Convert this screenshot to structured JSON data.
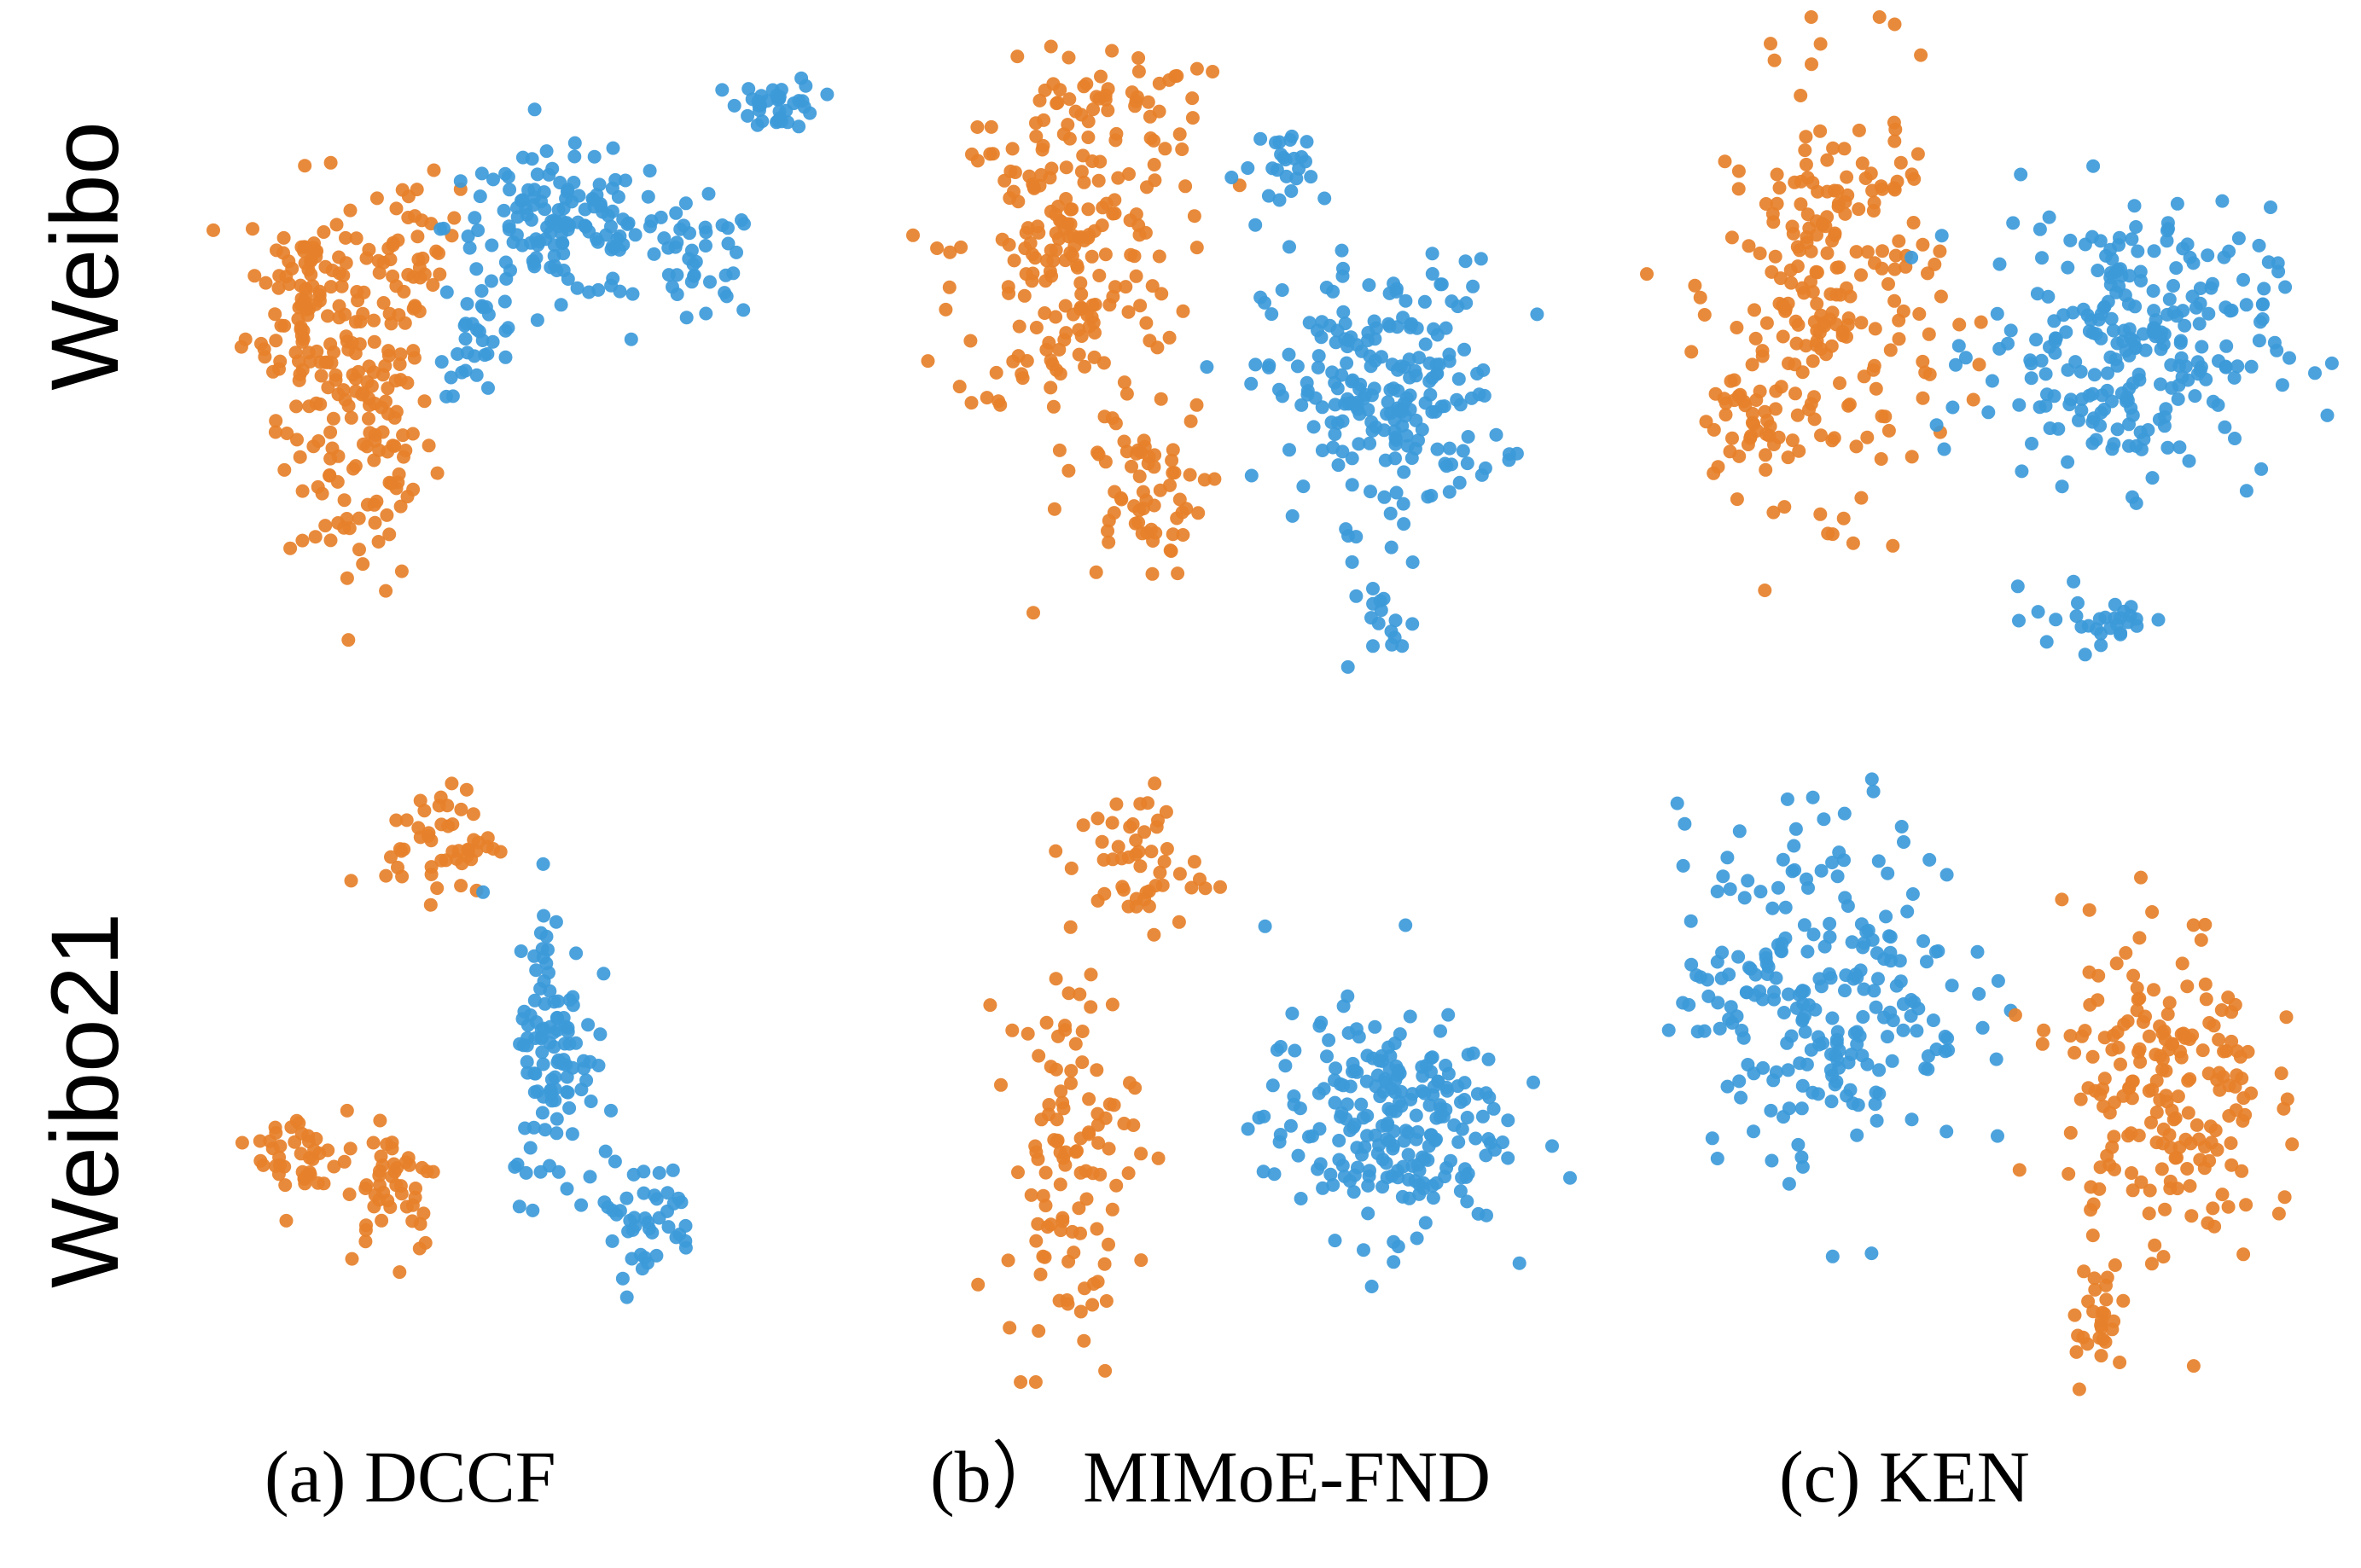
{
  "colors": {
    "orange": "#e6802a",
    "blue": "#3d9ad9"
  },
  "row_labels": [
    "Weibo",
    "Weibo21"
  ],
  "col_labels": [
    "(a) DCCF",
    "(b） MIMoE-FND",
    "(c) KEN"
  ],
  "chart_data": [
    {
      "type": "scatter",
      "row": "Weibo",
      "column": "(a) DCCF",
      "xlim": [
        0,
        100
      ],
      "ylim": [
        0,
        100
      ],
      "clusters": [
        {
          "color": "orange",
          "cx": 22,
          "cy": 42,
          "rx": 11,
          "ry": 25,
          "n": 140
        },
        {
          "color": "orange",
          "cx": 14,
          "cy": 62,
          "rx": 9,
          "ry": 18,
          "n": 90
        },
        {
          "color": "orange",
          "cx": 30,
          "cy": 70,
          "rx": 7,
          "ry": 10,
          "n": 40
        },
        {
          "color": "blue",
          "cx": 52,
          "cy": 73,
          "rx": 17,
          "ry": 11,
          "n": 140
        },
        {
          "color": "blue",
          "cx": 73,
          "cy": 67,
          "rx": 9,
          "ry": 9,
          "n": 40
        },
        {
          "color": "blue",
          "cx": 85,
          "cy": 92,
          "rx": 6,
          "ry": 4,
          "n": 35
        },
        {
          "color": "blue",
          "cx": 40,
          "cy": 55,
          "rx": 6,
          "ry": 8,
          "n": 30
        }
      ]
    },
    {
      "type": "scatter",
      "row": "Weibo",
      "column": "(b） MIMoE-FND",
      "xlim": [
        0,
        100
      ],
      "ylim": [
        0,
        100
      ],
      "clusters": [
        {
          "color": "orange",
          "cx": 22,
          "cy": 65,
          "rx": 16,
          "ry": 26,
          "n": 200
        },
        {
          "color": "orange",
          "cx": 33,
          "cy": 30,
          "rx": 9,
          "ry": 12,
          "n": 60
        },
        {
          "color": "orange",
          "cx": 30,
          "cy": 88,
          "rx": 12,
          "ry": 8,
          "n": 40
        },
        {
          "color": "blue",
          "cx": 68,
          "cy": 45,
          "rx": 17,
          "ry": 19,
          "n": 220
        },
        {
          "color": "blue",
          "cx": 55,
          "cy": 78,
          "rx": 8,
          "ry": 6,
          "n": 25
        },
        {
          "color": "blue",
          "cx": 70,
          "cy": 10,
          "rx": 5,
          "ry": 6,
          "n": 15
        }
      ]
    },
    {
      "type": "scatter",
      "row": "Weibo",
      "column": "(c) KEN",
      "xlim": [
        0,
        100
      ],
      "ylim": [
        0,
        100
      ],
      "clusters": [
        {
          "color": "orange",
          "cx": 26,
          "cy": 60,
          "rx": 15,
          "ry": 30,
          "n": 220
        },
        {
          "color": "orange",
          "cx": 14,
          "cy": 40,
          "rx": 8,
          "ry": 10,
          "n": 40
        },
        {
          "color": "blue",
          "cx": 67,
          "cy": 52,
          "rx": 20,
          "ry": 20,
          "n": 260
        },
        {
          "color": "blue",
          "cx": 64,
          "cy": 12,
          "rx": 10,
          "ry": 5,
          "n": 30
        }
      ]
    },
    {
      "type": "scatter",
      "row": "Weibo21",
      "column": "(a) DCCF",
      "xlim": [
        0,
        100
      ],
      "ylim": [
        0,
        100
      ],
      "clusters": [
        {
          "color": "orange",
          "cx": 38,
          "cy": 85,
          "rx": 9,
          "ry": 9,
          "n": 50
        },
        {
          "color": "orange",
          "cx": 14,
          "cy": 32,
          "rx": 7,
          "ry": 9,
          "n": 40
        },
        {
          "color": "orange",
          "cx": 30,
          "cy": 28,
          "rx": 8,
          "ry": 12,
          "n": 50
        },
        {
          "color": "blue",
          "cx": 57,
          "cy": 50,
          "rx": 7,
          "ry": 25,
          "n": 110
        },
        {
          "color": "blue",
          "cx": 72,
          "cy": 22,
          "rx": 9,
          "ry": 10,
          "n": 45
        }
      ]
    },
    {
      "type": "scatter",
      "row": "Weibo21",
      "column": "(b） MIMoE-FND",
      "xlim": [
        0,
        100
      ],
      "ylim": [
        0,
        100
      ],
      "clusters": [
        {
          "color": "orange",
          "cx": 25,
          "cy": 35,
          "rx": 10,
          "ry": 30,
          "n": 110
        },
        {
          "color": "orange",
          "cx": 35,
          "cy": 80,
          "rx": 10,
          "ry": 12,
          "n": 50
        },
        {
          "color": "blue",
          "cx": 72,
          "cy": 40,
          "rx": 18,
          "ry": 17,
          "n": 230
        }
      ]
    },
    {
      "type": "scatter",
      "row": "Weibo21",
      "column": "(c) KEN",
      "xlim": [
        0,
        100
      ],
      "ylim": [
        0,
        100
      ],
      "clusters": [
        {
          "color": "blue",
          "cx": 25,
          "cy": 60,
          "rx": 20,
          "ry": 25,
          "n": 240
        },
        {
          "color": "orange",
          "cx": 72,
          "cy": 45,
          "rx": 14,
          "ry": 25,
          "n": 200
        },
        {
          "color": "orange",
          "cx": 63,
          "cy": 12,
          "rx": 4,
          "ry": 8,
          "n": 25
        }
      ]
    }
  ]
}
